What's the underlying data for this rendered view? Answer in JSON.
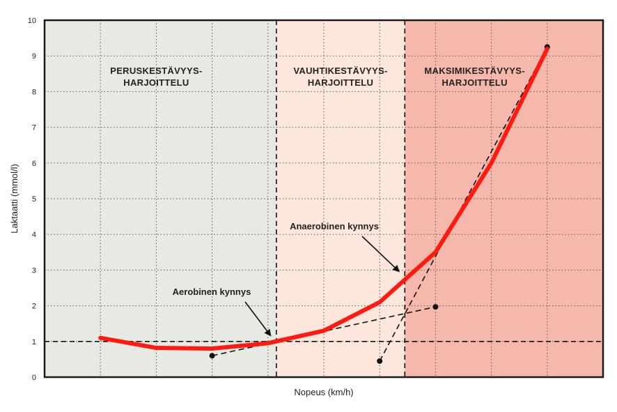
{
  "chart_data": {
    "type": "line",
    "title": "",
    "xlabel": "Nopeus (km/h)",
    "ylabel": "Laktaatti (mmol/l)",
    "ylim": [
      0,
      10
    ],
    "xlim": [
      0,
      10
    ],
    "y_ticks": [
      "0",
      "1",
      "2",
      "3",
      "4",
      "5",
      "6",
      "7",
      "8",
      "9",
      "10"
    ],
    "grid": true,
    "zones": [
      {
        "label_lines": [
          "PERUSKESTÄVYYS-",
          "HARJOITTELU"
        ],
        "x_start": 0,
        "x_end": 4.15,
        "color": "#e6eae2"
      },
      {
        "label_lines": [
          "VAUHTIKESTÄVYYS-",
          "HARJOITTELU"
        ],
        "x_start": 4.15,
        "x_end": 6.45,
        "color": "#fde7dc"
      },
      {
        "label_lines": [
          "MAKSIMIKESTÄVYYS-",
          "HARJOITTELU"
        ],
        "x_start": 6.45,
        "x_end": 10,
        "color": "#f6b8ac"
      }
    ],
    "series": [
      {
        "x": [
          1,
          2,
          3,
          4,
          5,
          6,
          7,
          8,
          9
        ],
        "y": [
          1.1,
          0.82,
          0.8,
          0.95,
          1.3,
          2.1,
          3.5,
          6.0,
          9.2
        ],
        "color": "#ff1a0f"
      }
    ],
    "reference_lines": [
      {
        "kind": "horizontal",
        "y": 1.0
      },
      {
        "kind": "vertical",
        "x": 4.15
      },
      {
        "kind": "vertical",
        "x": 6.45
      }
    ],
    "construction_lines": [
      {
        "points": [
          [
            3.0,
            0.6
          ],
          [
            7.0,
            1.97
          ]
        ]
      },
      {
        "points": [
          [
            6.0,
            0.45
          ],
          [
            9.0,
            9.25
          ]
        ]
      }
    ],
    "annotations": [
      {
        "text": "Aerobinen kynnys",
        "arrow_to": [
          4.15,
          1.0
        ]
      },
      {
        "text": "Anaerobinen kynnys",
        "arrow_to": [
          6.45,
          2.8
        ]
      }
    ]
  }
}
